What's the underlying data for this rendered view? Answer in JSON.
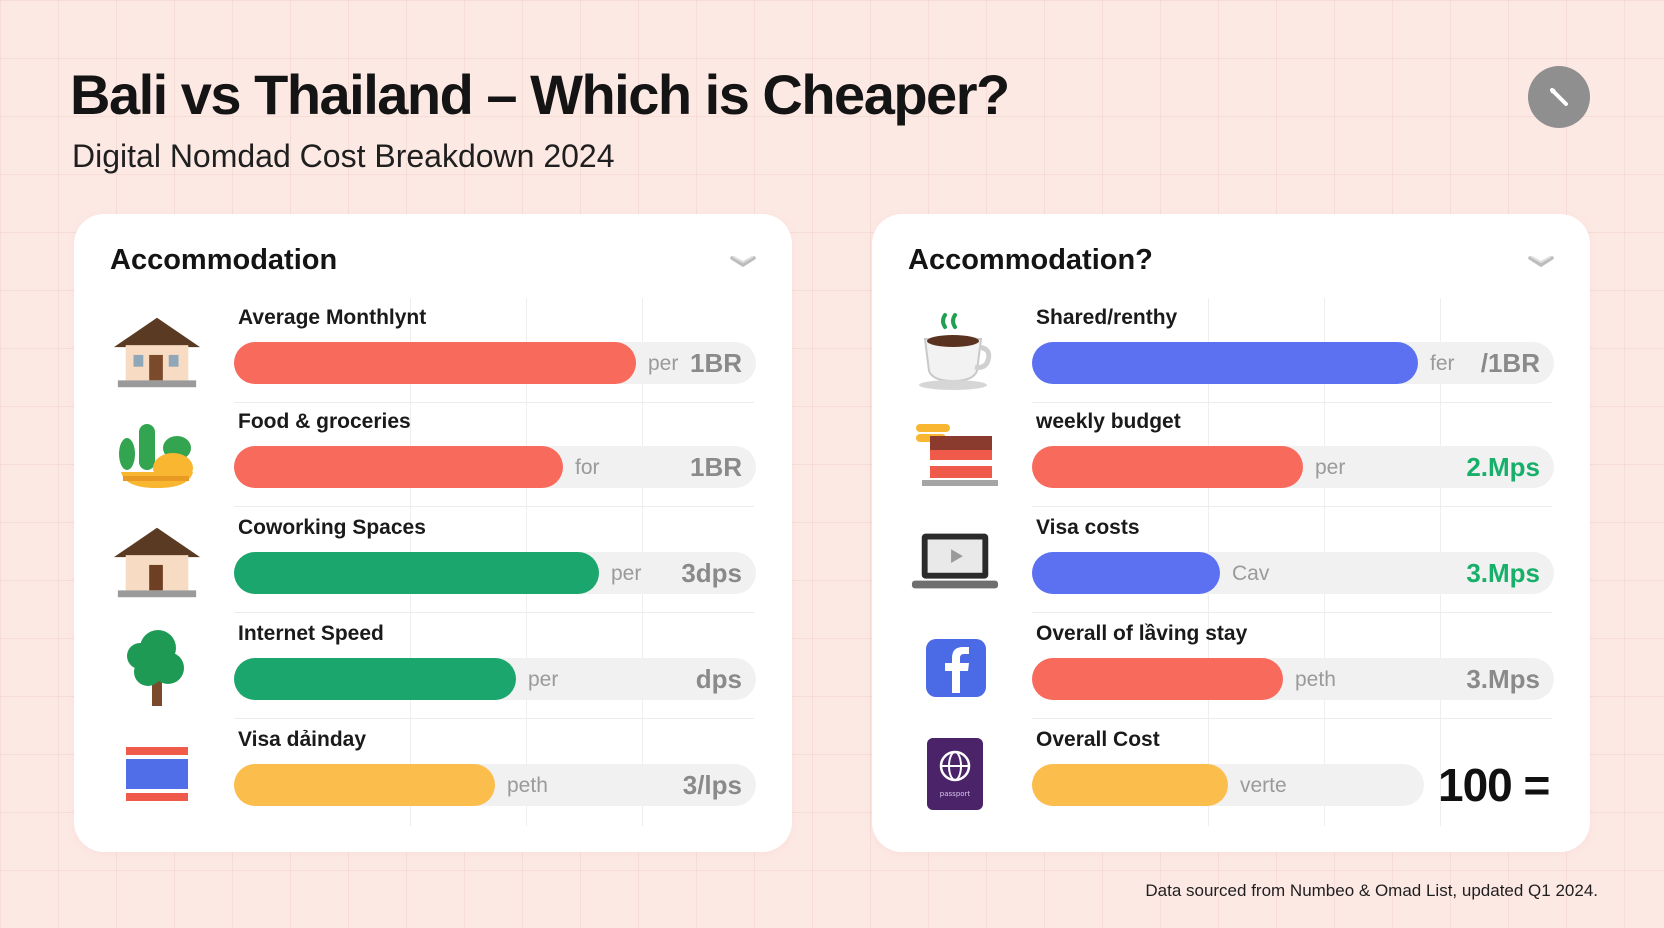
{
  "header": {
    "title": "Bali vs Thailand – Which is Cheaper?",
    "subtitle": "Digital Nomdad Cost Breakdown 2024"
  },
  "left_card": {
    "title": "Accommodation",
    "rows": [
      {
        "label": "Average Monthlynt",
        "unit": "per",
        "value": "1BR",
        "fill": 0.77,
        "color": "#f86a5c",
        "icon": "house-icon"
      },
      {
        "label": "Food & groceries",
        "unit": "for",
        "value": "1BR",
        "fill": 0.63,
        "color": "#f86a5c",
        "icon": "plant-bowl-icon"
      },
      {
        "label": "Coworking Spaces",
        "unit": "per",
        "value": "3dps",
        "fill": 0.7,
        "color": "#1aa66c",
        "icon": "house-icon"
      },
      {
        "label": "Internet Speed",
        "unit": "per",
        "value": "dps",
        "fill": 0.54,
        "color": "#1aa66c",
        "icon": "tree-icon"
      },
      {
        "label": "Visa dảinday",
        "unit": "peth",
        "value": "3/lps",
        "fill": 0.5,
        "color": "#fbbd4c",
        "icon": "thailand-flag-icon"
      }
    ]
  },
  "right_card": {
    "title": "Accommodation?",
    "rows": [
      {
        "label": "Shared/renthy",
        "unit": "fer",
        "value": "/1BR",
        "fill": 0.74,
        "color": "#5b71f2",
        "value_color": "#8a8a8a",
        "icon": "coffee-cup-icon"
      },
      {
        "label": "weekly budget",
        "unit": "per",
        "value": "2.Mps",
        "fill": 0.52,
        "color": "#f86a5c",
        "value_color": "#16b06a",
        "icon": "cake-stack-icon"
      },
      {
        "label": "Visa costs",
        "unit": "Cav",
        "value": "3.Mps",
        "fill": 0.36,
        "color": "#5b71f2",
        "value_color": "#16b06a",
        "icon": "laptop-icon"
      },
      {
        "label": "Overall of lầving stay",
        "unit": "peth",
        "value": "3.Mps",
        "fill": 0.48,
        "color": "#f86a5c",
        "value_color": "#8a8a8a",
        "icon": "facebook-icon"
      },
      {
        "label": "Overall Cost",
        "unit": "verte",
        "value": "100 =",
        "fill": 0.5,
        "color": "#fbbd4c",
        "icon": "passport-icon",
        "passport_text": "passport"
      }
    ]
  },
  "footer": {
    "source": "Data sourced from Numbeo & Omad List, updated Q1 2024."
  }
}
